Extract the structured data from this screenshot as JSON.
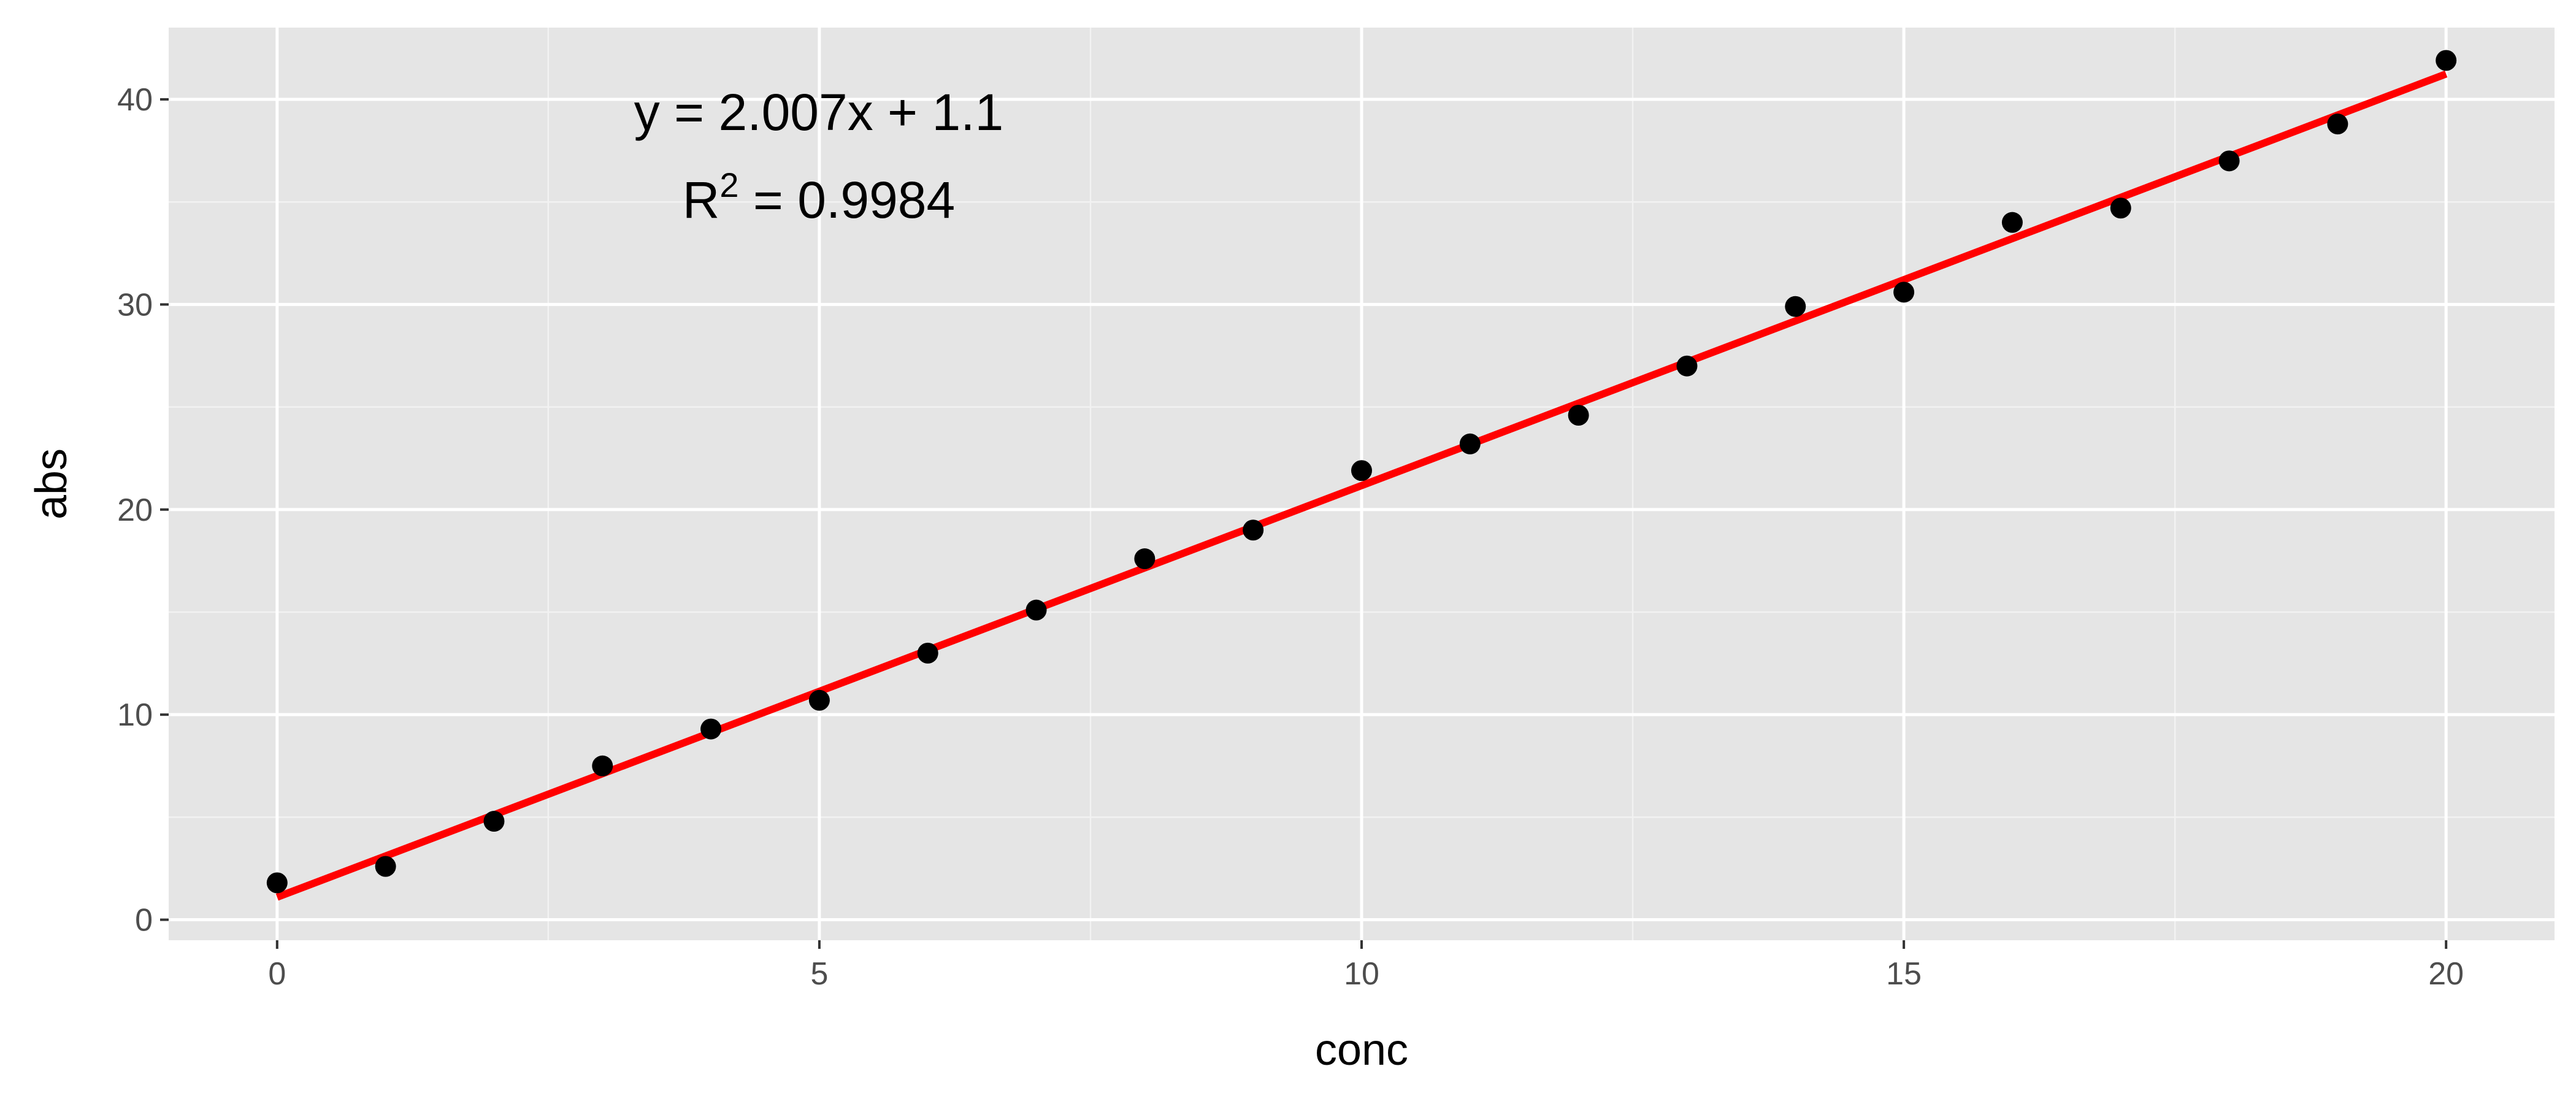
{
  "chart_data": {
    "type": "scatter",
    "title": "",
    "xlabel": "conc",
    "ylabel": "abs",
    "xlim": [
      -1,
      21
    ],
    "ylim": [
      -1,
      43.5
    ],
    "x_ticks": [
      0,
      5,
      10,
      15,
      20
    ],
    "y_ticks": [
      0,
      10,
      20,
      30,
      40
    ],
    "x_tick_labels": [
      "0",
      "5",
      "10",
      "15",
      "20"
    ],
    "y_tick_labels": [
      "0",
      "10",
      "20",
      "30",
      "40"
    ],
    "grid": true,
    "legend": "none",
    "background": "#e5e5e5",
    "point_color": "#000000",
    "series": [
      {
        "x": [
          0,
          1,
          2,
          3,
          4,
          5,
          6,
          7,
          8,
          9,
          10,
          11,
          12,
          13,
          14,
          15,
          16,
          17,
          18,
          19,
          20
        ],
        "y": [
          1.8,
          2.6,
          4.8,
          7.5,
          9.3,
          10.7,
          13.0,
          15.1,
          17.6,
          19.0,
          21.9,
          23.2,
          24.6,
          27.0,
          29.9,
          30.6,
          34.0,
          34.7,
          37.0,
          38.8,
          41.9
        ]
      }
    ],
    "fit_line": {
      "slope": 2.007,
      "intercept": 1.1,
      "x_range": [
        0,
        20
      ],
      "color": "#ff0000"
    },
    "annotations": {
      "equation": "y = 2.007x + 1.1",
      "r2_prefix": "R",
      "r2_superscript": "2",
      "r2_value": " = 0.9984"
    }
  }
}
